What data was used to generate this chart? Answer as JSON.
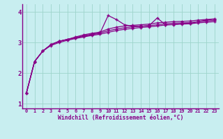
{
  "x": [
    0,
    1,
    2,
    3,
    4,
    5,
    6,
    7,
    8,
    9,
    10,
    11,
    12,
    13,
    14,
    15,
    16,
    17,
    18,
    19,
    20,
    21,
    22,
    23
  ],
  "line1": [
    1.35,
    2.38,
    2.72,
    2.93,
    3.04,
    3.1,
    3.15,
    3.2,
    3.26,
    3.3,
    3.88,
    3.75,
    3.58,
    3.53,
    3.53,
    3.55,
    3.8,
    3.58,
    3.58,
    3.62,
    3.62,
    3.68,
    3.73,
    3.76
  ],
  "line2": [
    1.35,
    2.38,
    2.72,
    2.93,
    3.04,
    3.1,
    3.18,
    3.25,
    3.3,
    3.34,
    3.44,
    3.5,
    3.54,
    3.56,
    3.58,
    3.6,
    3.64,
    3.66,
    3.68,
    3.69,
    3.7,
    3.73,
    3.75,
    3.77
  ],
  "line3": [
    1.35,
    2.38,
    2.72,
    2.93,
    3.04,
    3.1,
    3.16,
    3.22,
    3.27,
    3.31,
    3.38,
    3.44,
    3.48,
    3.51,
    3.53,
    3.55,
    3.58,
    3.61,
    3.63,
    3.64,
    3.65,
    3.68,
    3.7,
    3.72
  ],
  "line4": [
    1.35,
    2.38,
    2.72,
    2.9,
    3.0,
    3.07,
    3.13,
    3.18,
    3.23,
    3.27,
    3.33,
    3.39,
    3.43,
    3.46,
    3.49,
    3.51,
    3.54,
    3.57,
    3.59,
    3.6,
    3.61,
    3.64,
    3.66,
    3.68
  ],
  "line_color": "#880088",
  "bg_color": "#c8eef0",
  "grid_color": "#9ed4cc",
  "xlabel": "Windchill (Refroidissement éolien,°C)",
  "yticks": [
    1,
    2,
    3,
    4
  ],
  "ylim": [
    0.85,
    4.25
  ],
  "xlim": [
    -0.5,
    23.5
  ]
}
